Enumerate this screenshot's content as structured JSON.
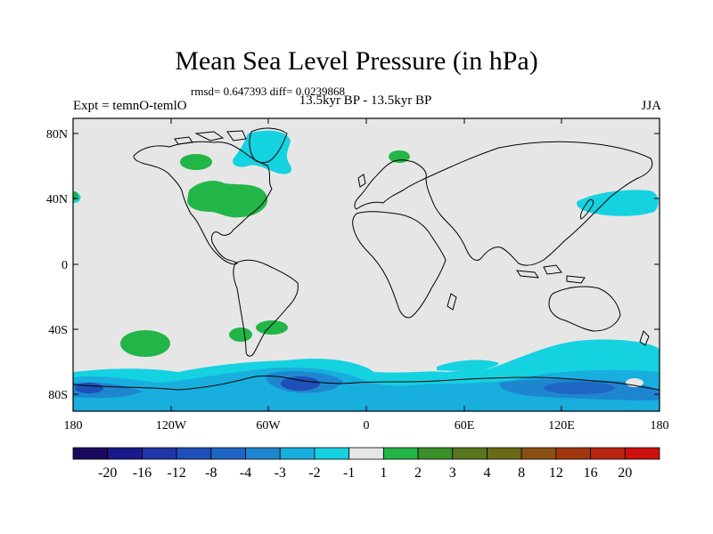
{
  "title": "Mean Sea Level Pressure (in hPa)",
  "stats": "rmsd= 0.647393 diff= 0.0239868",
  "expt": "Expt = temnO-temlO",
  "period": "13.5kyr BP - 13.5kyr BP",
  "season": "JJA",
  "lat_ticks": [
    "80N",
    "40N",
    "0",
    "40S",
    "80S"
  ],
  "lon_ticks": [
    "180",
    "120W",
    "60W",
    "0",
    "60E",
    "120E",
    "180"
  ],
  "colorbar": {
    "labels": [
      "-20",
      "-16",
      "-12",
      "-8",
      "-4",
      "-3",
      "-2",
      "-1",
      "1",
      "2",
      "3",
      "4",
      "8",
      "12",
      "16",
      "20"
    ],
    "colors": [
      "#1b0a5e",
      "#1a1a8a",
      "#1f35a8",
      "#1f4fb8",
      "#1f66c4",
      "#1e86cf",
      "#18aede",
      "#15d2e0",
      "#e6e6e6",
      "#22b548",
      "#3a8f2a",
      "#58761d",
      "#6a6a16",
      "#8a5012",
      "#a2360f",
      "#b82410",
      "#cc1010"
    ]
  }
}
